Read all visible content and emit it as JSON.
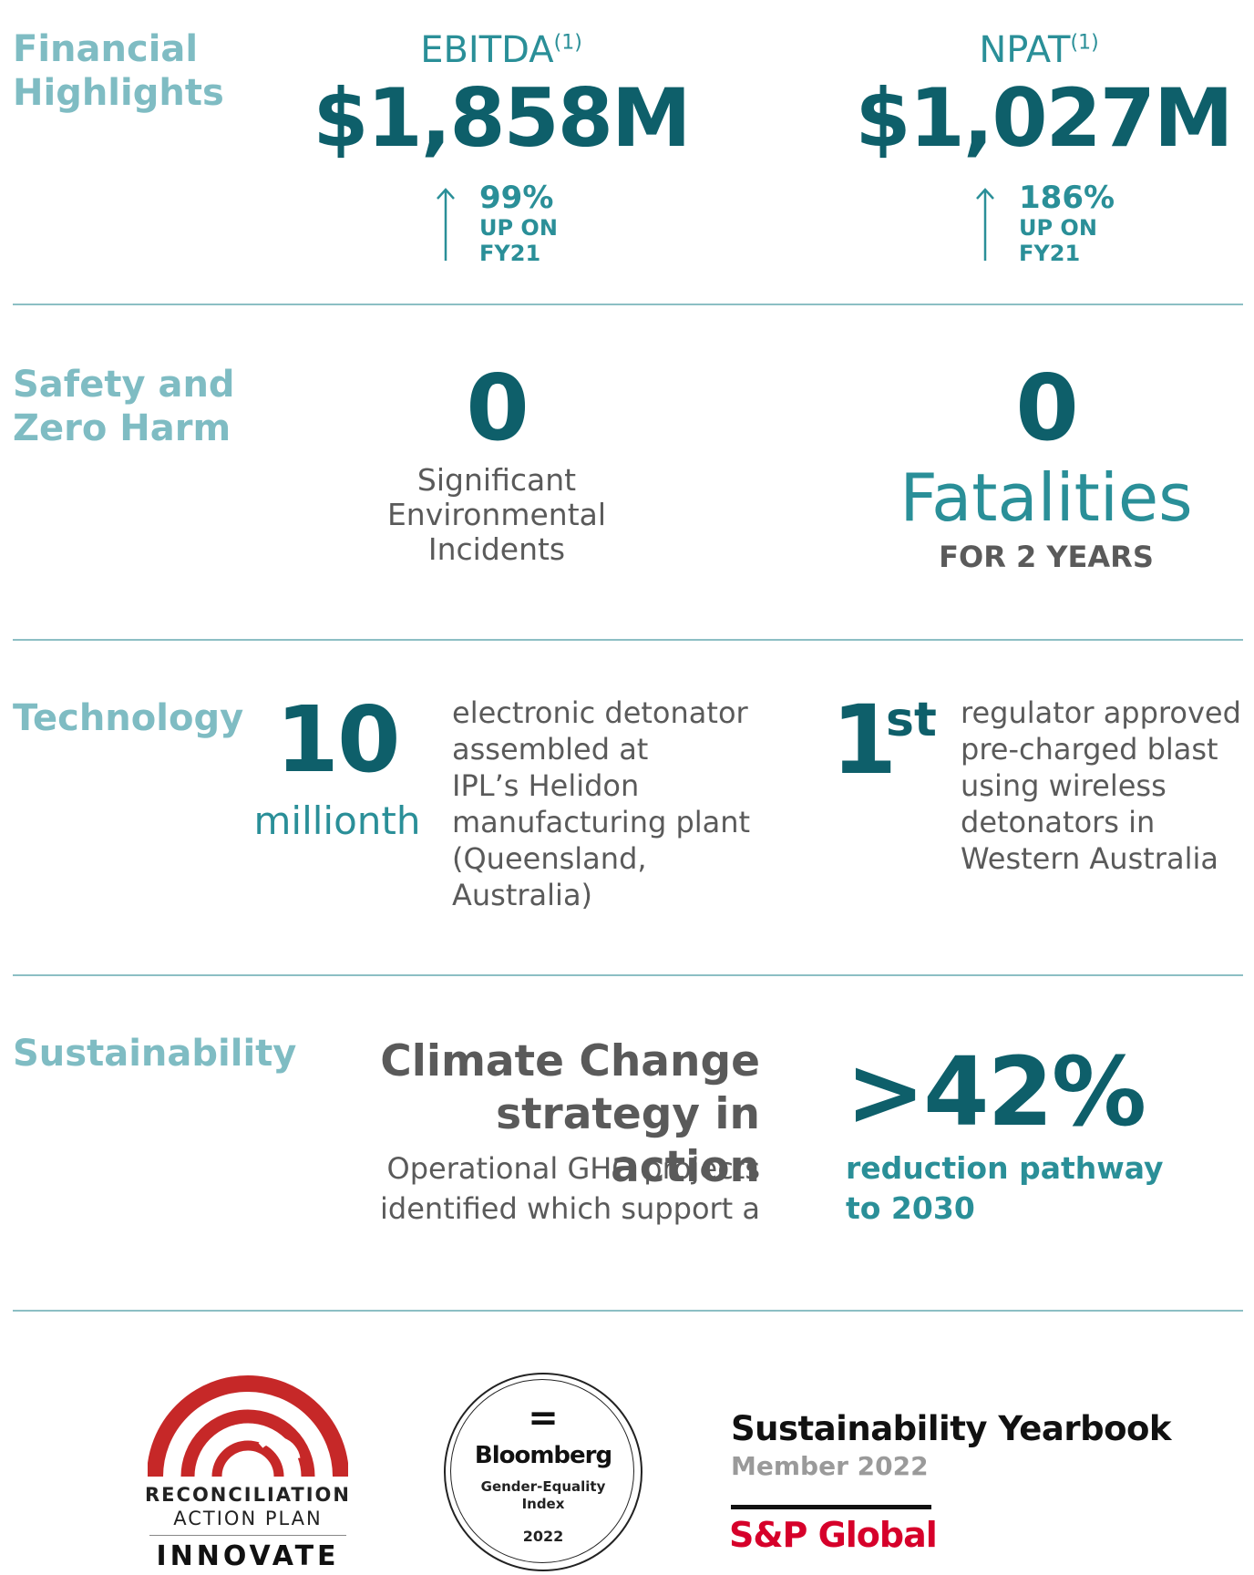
{
  "financial": {
    "label_line1": "Financial",
    "label_line2": "Highlights",
    "ebitda": {
      "title": "EBITDA",
      "note": "(1)",
      "value": "$1,858M",
      "pct": "99%",
      "up_line1": "UP ON",
      "up_line2": "FY21"
    },
    "npat": {
      "title": "NPAT",
      "note": "(1)",
      "value": "$1,027M",
      "pct": "186%",
      "up_line1": "UP ON",
      "up_line2": "FY21"
    }
  },
  "safety": {
    "label_line1": "Safety and",
    "label_line2": "Zero Harm",
    "env": {
      "value": "0",
      "line1": "Significant",
      "line2": "Environmental",
      "line3": "Incidents"
    },
    "fatal": {
      "value": "0",
      "word": "Fatalities",
      "sub": "FOR 2 YEARS"
    }
  },
  "technology": {
    "label": "Technology",
    "detonator": {
      "value": "10",
      "unit": "millionth",
      "lines": [
        "electronic detonator",
        "assembled at",
        "IPL’s Helidon",
        "manufacturing plant",
        "(Queensland,",
        "Australia)"
      ]
    },
    "first": {
      "value": "1",
      "suffix": "st",
      "lines": [
        "regulator approved",
        "pre-charged blast",
        "using wireless",
        "detonators in",
        "Western Australia"
      ]
    }
  },
  "sustainability": {
    "label": "Sustainability",
    "heading_line1": "Climate Change",
    "heading_line2": "strategy in action",
    "desc_line1": "Operational GHG projects",
    "desc_line2": "identified which support a",
    "value": ">42%",
    "sub_line1": "reduction pathway",
    "sub_line2": "to 2030"
  },
  "logos": {
    "rap": {
      "line1": "RECONCILIATION",
      "line2": "ACTION PLAN",
      "line3": "INNOVATE"
    },
    "bloomberg": {
      "symbol": "=",
      "name": "Bloomberg",
      "line1": "Gender-Equality",
      "line2": "Index",
      "year": "2022"
    },
    "sp": {
      "title": "Sustainability Yearbook",
      "member": "Member 2022",
      "brand": "S&P Global"
    }
  },
  "colors": {
    "teal_dark": "#0e5f6a",
    "teal_mid": "#2a8f98",
    "teal_light": "#7fbcc3",
    "rap_red": "#c62828",
    "sp_red": "#d6002a"
  }
}
